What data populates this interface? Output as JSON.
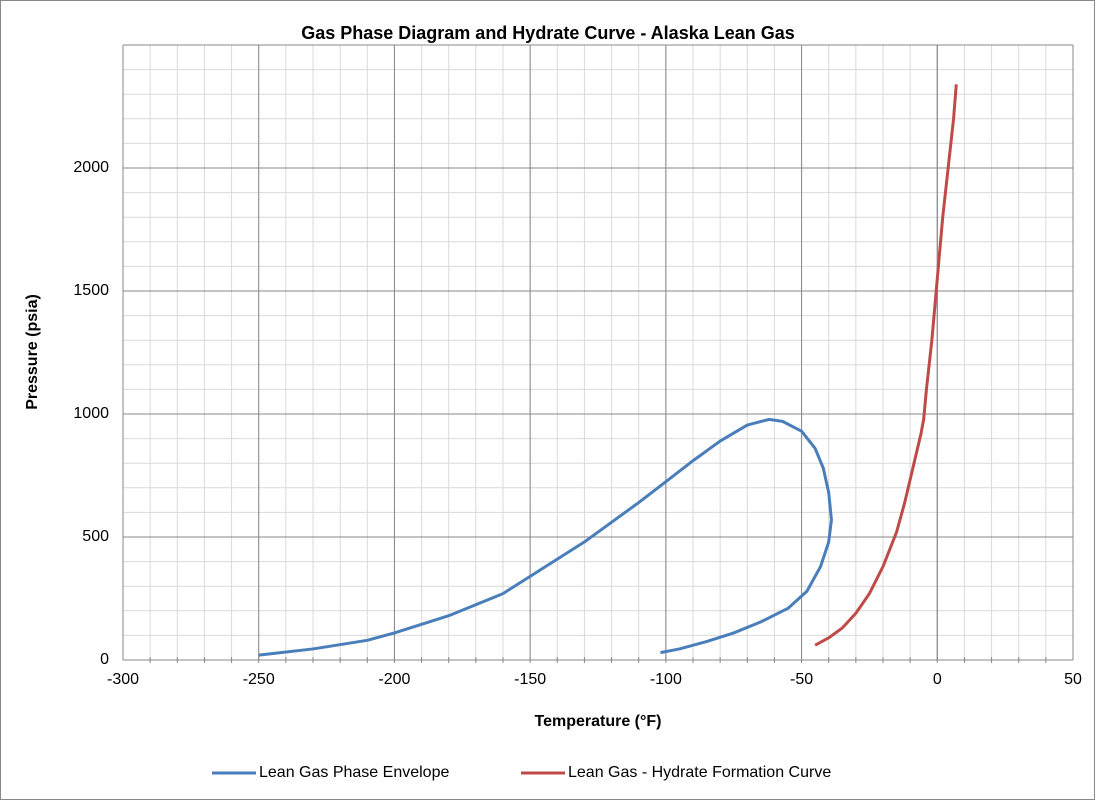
{
  "chart_data": {
    "type": "line",
    "title": "Gas Phase Diagram and Hydrate Curve - Alaska Lean Gas",
    "xlabel": "Temperature (°F)",
    "ylabel": "Pressure (psia)",
    "xlim": [
      -300,
      50
    ],
    "xticks": [
      -300,
      -250,
      -200,
      -150,
      -100,
      -50,
      0,
      50
    ],
    "ylim": [
      0,
      2500
    ],
    "yticks": [
      0,
      500,
      1000,
      1500,
      2000
    ],
    "grid": true,
    "minor_grid": true,
    "legend": "bottom",
    "series": [
      {
        "name": "Lean Gas Phase Envelope",
        "color": "#4a7ebb",
        "x": [
          -250,
          -230,
          -210,
          -200,
          -180,
          -160,
          -150,
          -130,
          -110,
          -100,
          -90,
          -80,
          -70,
          -62,
          -57,
          -50,
          -45,
          -42,
          -40,
          -39,
          -40,
          -43,
          -48,
          -55,
          -65,
          -75,
          -85,
          -95,
          -102
        ],
        "values": [
          20,
          45,
          80,
          110,
          180,
          270,
          340,
          480,
          640,
          725,
          810,
          890,
          955,
          978,
          970,
          930,
          860,
          780,
          680,
          570,
          480,
          380,
          280,
          210,
          155,
          110,
          75,
          45,
          30
        ]
      },
      {
        "name": "Lean Gas - Hydrate Formation Curve",
        "color": "#be4b48",
        "x": [
          -45,
          -40,
          -35,
          -30,
          -25,
          -20,
          -15,
          -12,
          -9,
          -6,
          -5,
          -4,
          -2,
          0,
          2,
          4,
          6,
          7
        ],
        "values": [
          60,
          90,
          130,
          190,
          270,
          380,
          520,
          640,
          780,
          920,
          980,
          1100,
          1300,
          1550,
          1800,
          2000,
          2200,
          2340
        ]
      }
    ]
  }
}
